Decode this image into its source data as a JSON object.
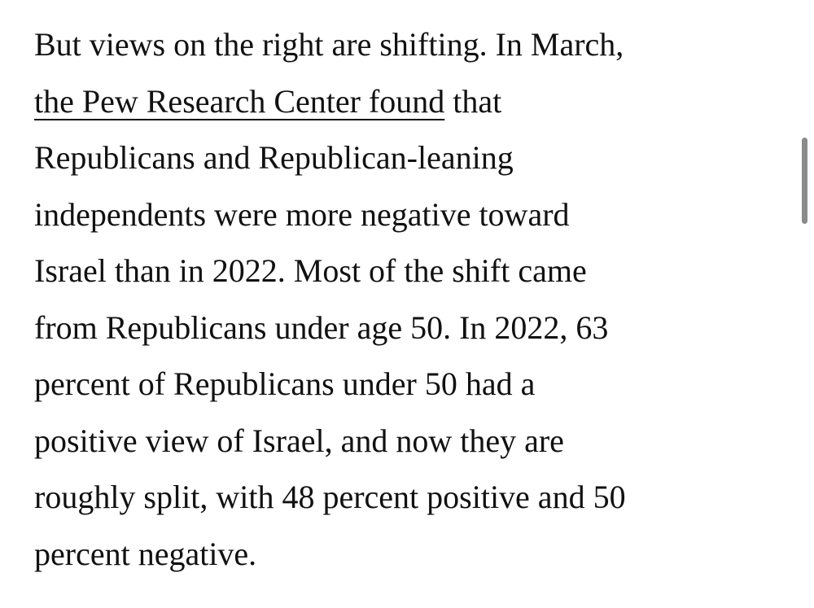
{
  "article": {
    "line1": "But views on the right are shifting. In March,",
    "link_text": "the Pew Research Center found",
    "line2_rest": " that",
    "line3": "Republicans and Republican-leaning",
    "line4": "independents were more negative toward",
    "line5": "Israel than in 2022. Most of the shift came",
    "line6": "from Republicans under age 50. In 2022, 63",
    "line7": "percent of Republicans under 50 had a",
    "line8": "positive view of Israel, and now they are",
    "line9": "roughly split, with 48 percent positive and 50",
    "line10": "percent negative."
  },
  "colors": {
    "text": "#111111",
    "background": "#ffffff",
    "scrollbar": "#8a8a8a"
  }
}
